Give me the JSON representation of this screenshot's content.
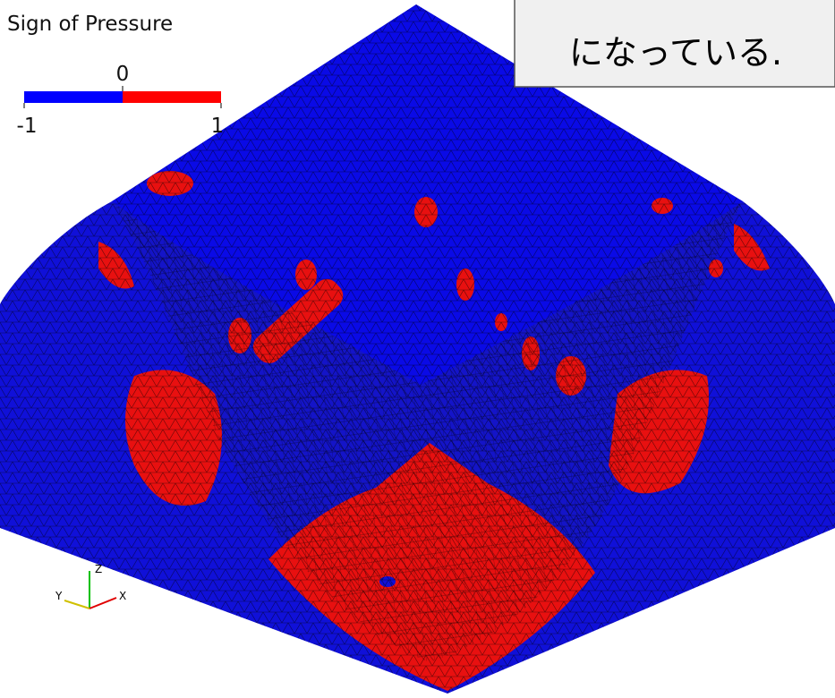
{
  "legend": {
    "title": "Sign of Pressure",
    "ticks": [
      -1,
      0,
      1
    ]
  },
  "callout": {
    "text": "になっている."
  },
  "axes": {
    "labels": [
      "Z",
      "Y",
      "X"
    ]
  }
}
